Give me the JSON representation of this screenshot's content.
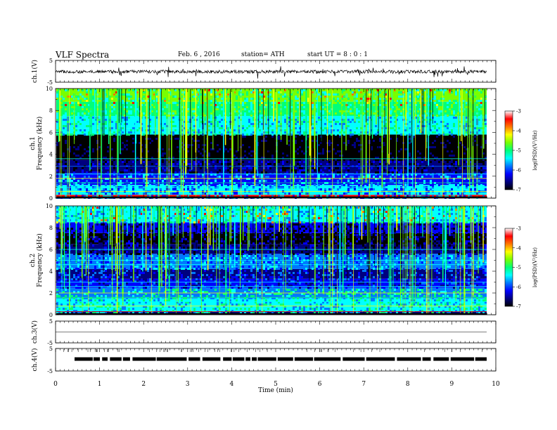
{
  "header": {
    "title": "VLF Spectra",
    "date": "Feb. 6 , 2016",
    "station": "station= ATH",
    "start": "start UT = 8 : 0 : 1"
  },
  "colors": {
    "waveform": "#000000",
    "background": "#ffffff",
    "colormap": [
      "#000000",
      "#00007f",
      "#0000ff",
      "#0078ff",
      "#00ffff",
      "#00ff78",
      "#78ff00",
      "#ffff00",
      "#ff7800",
      "#ff0000",
      "#ff9a9a",
      "#ffffff"
    ]
  },
  "chart_data": [
    {
      "id": "ch1-waveform",
      "type": "line",
      "ylabel": "ch.1(V)",
      "ylim": [
        -5,
        5
      ],
      "y_ticks": [
        "5",
        "-5"
      ],
      "xlim": [
        0,
        10
      ],
      "note_values": "noisy waveform, baseline near 0 V with spikes"
    },
    {
      "id": "ch1-spectrogram",
      "type": "heatmap",
      "ylabel": "ch.1 Frequency (kHz)",
      "ylim": [
        0,
        10
      ],
      "y_ticks": [
        "0",
        "2",
        "4",
        "6",
        "8",
        "10"
      ],
      "xlim": [
        0,
        10
      ],
      "colorbar": {
        "label": "log(PSD)(V²/Hz)",
        "range": [
          -7,
          -3
        ],
        "ticks": [
          "-3",
          "-4",
          "-5",
          "-6",
          "-7"
        ]
      }
    },
    {
      "id": "ch2-spectrogram",
      "type": "heatmap",
      "ylabel": "ch.2 Frequency (kHz)",
      "ylim": [
        0,
        10
      ],
      "y_ticks": [
        "0",
        "2",
        "4",
        "6",
        "8",
        "10"
      ],
      "xlim": [
        0,
        10
      ],
      "colorbar": {
        "label": "log(PSD)(V²/Hz)",
        "range": [
          -7,
          -3
        ],
        "ticks": [
          "-3",
          "-4",
          "-5",
          "-6",
          "-7"
        ]
      }
    },
    {
      "id": "ch3-waveform",
      "type": "line",
      "ylabel": "ch.3(V)",
      "ylim": [
        -5,
        5
      ],
      "y_ticks": [
        "5",
        "-5"
      ],
      "xlim": [
        0,
        10
      ]
    },
    {
      "id": "ch4-waveform",
      "type": "line",
      "ylabel": "ch.4(V)",
      "ylim": [
        -5,
        5
      ],
      "y_ticks": [
        "5",
        "-5"
      ],
      "xlim": [
        0,
        10
      ]
    }
  ],
  "xaxis": {
    "label": "Time (min)",
    "range": [
      0,
      10
    ],
    "ticks": [
      "0",
      "1",
      "2",
      "3",
      "4",
      "5",
      "6",
      "7",
      "8",
      "9",
      "10"
    ]
  }
}
